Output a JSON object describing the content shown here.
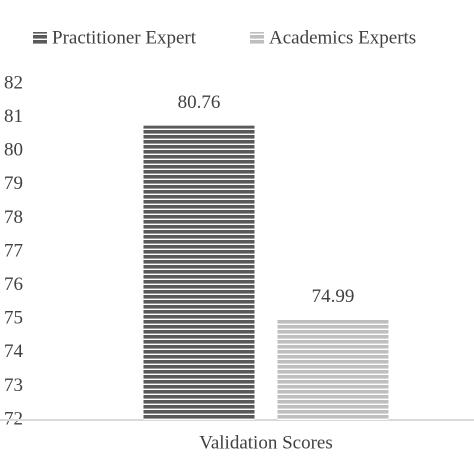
{
  "chart_data": {
    "type": "bar",
    "categories": [
      "Validation Scores"
    ],
    "series": [
      {
        "name": "Practitioner Expert",
        "color": "#595959",
        "values": [
          80.76
        ]
      },
      {
        "name": "Academics Experts",
        "color": "#bfbfbf",
        "values": [
          74.99
        ]
      }
    ],
    "ylim": [
      72,
      82
    ],
    "yticks": [
      72,
      73,
      74,
      75,
      76,
      77,
      78,
      79,
      80,
      81,
      82
    ],
    "legend": "top",
    "grid": false,
    "data_labels": true
  }
}
